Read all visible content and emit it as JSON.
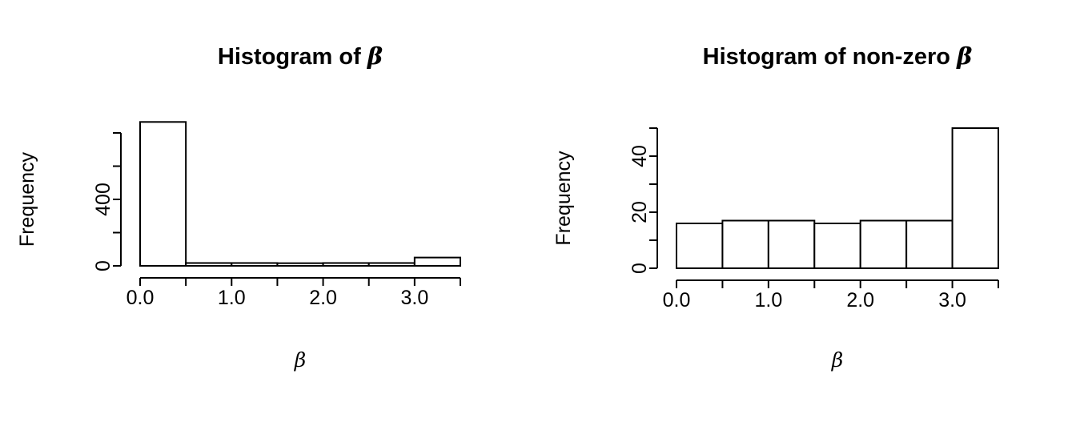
{
  "figure": {
    "background": "#ffffff",
    "foreground": "#000000"
  },
  "chart_data": [
    {
      "type": "bar",
      "kind": "histogram",
      "title": "Histogram of β",
      "xlabel": "β",
      "ylabel": "Frequency",
      "bin_edges": [
        0.0,
        0.5,
        1.0,
        1.5,
        2.0,
        2.5,
        3.0,
        3.5
      ],
      "counts": [
        866,
        17,
        17,
        16,
        17,
        17,
        50
      ],
      "xlim": [
        0,
        3.5
      ],
      "ylim": [
        0,
        866
      ],
      "grid": false,
      "legend": null,
      "bar_fill": "#ffffff",
      "bar_stroke": "#000000",
      "x_ticks": [
        {
          "value": 0.0,
          "label": "0.0"
        },
        {
          "value": 0.5,
          "label": ""
        },
        {
          "value": 1.0,
          "label": "1.0"
        },
        {
          "value": 1.5,
          "label": ""
        },
        {
          "value": 2.0,
          "label": "2.0"
        },
        {
          "value": 2.5,
          "label": ""
        },
        {
          "value": 3.0,
          "label": "3.0"
        },
        {
          "value": 3.5,
          "label": ""
        }
      ],
      "y_ticks": [
        {
          "value": 0,
          "label": "0"
        },
        {
          "value": 200,
          "label": ""
        },
        {
          "value": 400,
          "label": "400"
        },
        {
          "value": 600,
          "label": ""
        },
        {
          "value": 800,
          "label": ""
        }
      ]
    },
    {
      "type": "bar",
      "kind": "histogram",
      "title": "Histogram of non-zero β",
      "xlabel": "β",
      "ylabel": "Frequency",
      "bin_edges": [
        0.0,
        0.5,
        1.0,
        1.5,
        2.0,
        2.5,
        3.0,
        3.5
      ],
      "counts": [
        16,
        17,
        17,
        16,
        17,
        17,
        50
      ],
      "xlim": [
        0,
        3.5
      ],
      "ylim": [
        0,
        50
      ],
      "grid": false,
      "legend": null,
      "bar_fill": "#ffffff",
      "bar_stroke": "#000000",
      "x_ticks": [
        {
          "value": 0.0,
          "label": "0.0"
        },
        {
          "value": 0.5,
          "label": ""
        },
        {
          "value": 1.0,
          "label": "1.0"
        },
        {
          "value": 1.5,
          "label": ""
        },
        {
          "value": 2.0,
          "label": "2.0"
        },
        {
          "value": 2.5,
          "label": ""
        },
        {
          "value": 3.0,
          "label": "3.0"
        },
        {
          "value": 3.5,
          "label": ""
        }
      ],
      "y_ticks": [
        {
          "value": 0,
          "label": "0"
        },
        {
          "value": 10,
          "label": ""
        },
        {
          "value": 20,
          "label": "20"
        },
        {
          "value": 30,
          "label": ""
        },
        {
          "value": 40,
          "label": "40"
        },
        {
          "value": 50,
          "label": ""
        }
      ]
    }
  ]
}
